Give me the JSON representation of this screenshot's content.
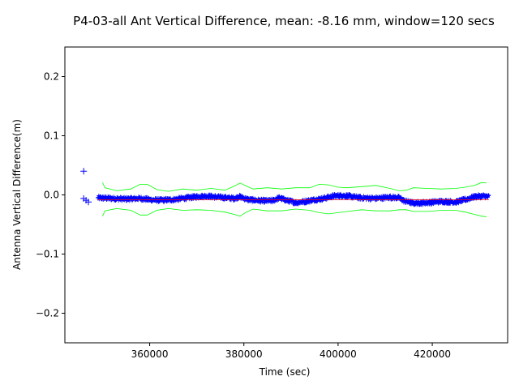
{
  "chart_data": {
    "type": "scatter",
    "title": "P4-03-all Ant Vertical Difference, mean: -8.16 mm, window=120 secs",
    "xlabel": "Time (sec)",
    "ylabel": "Antenna Vertical Difference(m)",
    "xlim": [
      342000,
      436000
    ],
    "ylim": [
      -0.25,
      0.25
    ],
    "xticks": [
      360000,
      380000,
      400000,
      420000
    ],
    "xtick_labels": [
      "360000",
      "380000",
      "400000",
      "420000"
    ],
    "yticks": [
      0.2,
      0.1,
      0.0,
      -0.1,
      -0.2
    ],
    "ytick_labels": [
      "0.2",
      "0.1",
      "0.0",
      "−0.1",
      "−0.2"
    ],
    "grid": false,
    "colors": {
      "data": "#0000ff",
      "mean": "#ff0000",
      "band": "#00ff00"
    },
    "outliers": [
      {
        "x": 346000,
        "y": 0.04
      },
      {
        "x": 346000,
        "y": -0.006
      },
      {
        "x": 346500,
        "y": -0.009
      },
      {
        "x": 347000,
        "y": -0.012
      }
    ],
    "series": [
      {
        "x": [
          349000,
          352000,
          355000,
          358000,
          360000,
          362000,
          365000,
          368000,
          370000,
          372000,
          375000,
          378000,
          379000,
          381000,
          384000,
          386000,
          387500,
          389000,
          391000,
          393000,
          395000,
          397000,
          399000,
          401000,
          403000,
          405000,
          408000,
          411000,
          413000,
          414000,
          416000,
          419000,
          422000,
          425000,
          427000,
          429000,
          431000,
          432000
        ],
        "y": [
          -0.005,
          -0.006,
          -0.007,
          -0.006,
          -0.008,
          -0.009,
          -0.008,
          -0.005,
          -0.003,
          -0.002,
          -0.004,
          -0.006,
          -0.003,
          -0.008,
          -0.01,
          -0.01,
          -0.005,
          -0.009,
          -0.013,
          -0.011,
          -0.008,
          -0.006,
          -0.002,
          -0.001,
          -0.003,
          -0.005,
          -0.006,
          -0.004,
          -0.005,
          -0.01,
          -0.014,
          -0.013,
          -0.011,
          -0.012,
          -0.008,
          -0.003,
          -0.002,
          -0.003
        ]
      }
    ],
    "mean_line": {
      "x": [
        349000,
        432000
      ],
      "y": [
        -0.008,
        -0.008
      ]
    },
    "upper_band": {
      "x": [
        350000,
        350500,
        353000,
        356000,
        358000,
        359500,
        361500,
        364000,
        367000,
        370000,
        373000,
        376000,
        378000,
        379200,
        380500,
        382000,
        385000,
        388000,
        391000,
        394000,
        396000,
        398000,
        400000,
        402000,
        405000,
        408000,
        411000,
        413000,
        414500,
        416000,
        419000,
        422000,
        425000,
        427000,
        429000,
        430500,
        431500
      ],
      "y": [
        0.021,
        0.012,
        0.007,
        0.01,
        0.018,
        0.018,
        0.009,
        0.006,
        0.01,
        0.008,
        0.011,
        0.008,
        0.015,
        0.02,
        0.015,
        0.01,
        0.012,
        0.01,
        0.012,
        0.012,
        0.018,
        0.017,
        0.013,
        0.012,
        0.014,
        0.016,
        0.011,
        0.007,
        0.008,
        0.012,
        0.011,
        0.01,
        0.011,
        0.013,
        0.016,
        0.021,
        0.02
      ]
    },
    "lower_band": {
      "x": [
        350000,
        350500,
        353000,
        356000,
        358000,
        359500,
        361500,
        364000,
        367000,
        370000,
        373000,
        376000,
        378000,
        379200,
        380500,
        382000,
        385000,
        388000,
        391000,
        394000,
        396000,
        398000,
        400000,
        402000,
        405000,
        408000,
        411000,
        413000,
        414500,
        416000,
        419000,
        422000,
        425000,
        427000,
        429000,
        430500,
        431500
      ],
      "y": [
        -0.036,
        -0.027,
        -0.023,
        -0.026,
        -0.034,
        -0.034,
        -0.026,
        -0.023,
        -0.026,
        -0.025,
        -0.026,
        -0.029,
        -0.033,
        -0.036,
        -0.029,
        -0.024,
        -0.027,
        -0.027,
        -0.024,
        -0.026,
        -0.03,
        -0.032,
        -0.03,
        -0.028,
        -0.025,
        -0.027,
        -0.027,
        -0.025,
        -0.025,
        -0.028,
        -0.028,
        -0.026,
        -0.026,
        -0.029,
        -0.033,
        -0.036,
        -0.037
      ]
    }
  }
}
